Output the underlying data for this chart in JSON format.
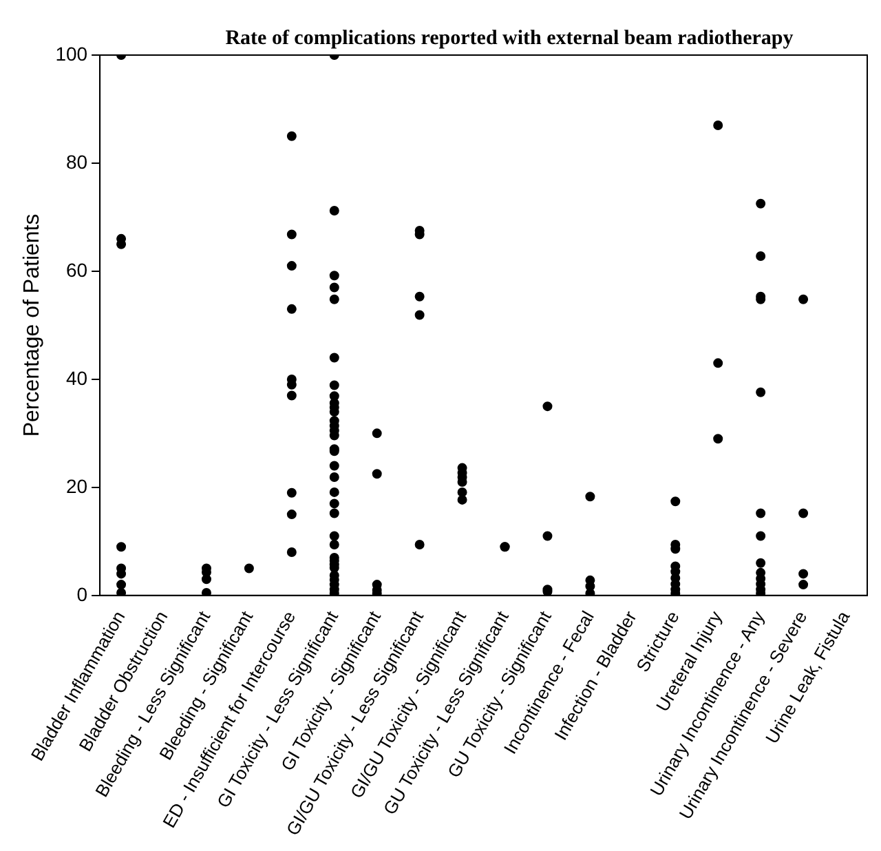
{
  "chart_data": {
    "type": "scatter",
    "title": "Rate of complications reported with external beam radiotherapy",
    "ylabel": "Percentage of Patients",
    "categories": [
      "Bladder Inflammation",
      "Bladder Obstruction",
      "Bleeding - Less Significant",
      "Bleeding - Significant",
      "ED - Insufficient for Intercourse",
      "GI Toxicity - Less Significant",
      "GI Toxicity - Significant",
      "GI/GU Toxicity - Less Significant",
      "GI/GU Toxicity - Significant",
      "GU Toxicity - Less Significant",
      "GU Toxicity - Significant",
      "Incontinence - Fecal",
      "Infection - Bladder",
      "Stricture",
      "Ureteral Injury",
      "Urinary Incontinence - Any",
      "Urinary Incontinence - Severe",
      "Urine Leak, Fistula"
    ],
    "series": [
      {
        "color": "#000000",
        "x": [
          "Bladder Inflammation",
          "Bladder Inflammation",
          "Bladder Inflammation",
          "Bladder Inflammation",
          "Bladder Inflammation",
          "Bladder Inflammation",
          "Bladder Inflammation",
          "Bladder Inflammation",
          "Bleeding - Less Significant",
          "Bleeding - Less Significant",
          "Bleeding - Less Significant",
          "Bleeding - Less Significant",
          "Bleeding - Significant",
          "ED - Insufficient for Intercourse",
          "ED - Insufficient for Intercourse",
          "ED - Insufficient for Intercourse",
          "ED - Insufficient for Intercourse",
          "ED - Insufficient for Intercourse",
          "ED - Insufficient for Intercourse",
          "ED - Insufficient for Intercourse",
          "ED - Insufficient for Intercourse",
          "ED - Insufficient for Intercourse",
          "ED - Insufficient for Intercourse",
          "GI Toxicity - Less Significant",
          "GI Toxicity - Less Significant",
          "GI Toxicity - Less Significant",
          "GI Toxicity - Less Significant",
          "GI Toxicity - Less Significant",
          "GI Toxicity - Less Significant",
          "GI Toxicity - Less Significant",
          "GI Toxicity - Less Significant",
          "GI Toxicity - Less Significant",
          "GI Toxicity - Less Significant",
          "GI Toxicity - Less Significant",
          "GI Toxicity - Less Significant",
          "GI Toxicity - Less Significant",
          "GI Toxicity - Less Significant",
          "GI Toxicity - Less Significant",
          "GI Toxicity - Less Significant",
          "GI Toxicity - Less Significant",
          "GI Toxicity - Less Significant",
          "GI Toxicity - Less Significant",
          "GI Toxicity - Less Significant",
          "GI Toxicity - Less Significant",
          "GI Toxicity - Less Significant",
          "GI Toxicity - Less Significant",
          "GI Toxicity - Less Significant",
          "GI Toxicity - Less Significant",
          "GI Toxicity - Less Significant",
          "GI Toxicity - Less Significant",
          "GI Toxicity - Less Significant",
          "GI Toxicity - Less Significant",
          "GI Toxicity - Less Significant",
          "GI Toxicity - Less Significant",
          "GI Toxicity - Less Significant",
          "GI Toxicity - Less Significant",
          "GI Toxicity - Significant",
          "GI Toxicity - Significant",
          "GI Toxicity - Significant",
          "GI Toxicity - Significant",
          "GI Toxicity - Significant",
          "GI/GU Toxicity - Less Significant",
          "GI/GU Toxicity - Less Significant",
          "GI/GU Toxicity - Less Significant",
          "GI/GU Toxicity - Less Significant",
          "GI/GU Toxicity - Less Significant",
          "GI/GU Toxicity - Significant",
          "GI/GU Toxicity - Significant",
          "GI/GU Toxicity - Significant",
          "GI/GU Toxicity - Significant",
          "GI/GU Toxicity - Significant",
          "GI/GU Toxicity - Significant",
          "GU Toxicity - Less Significant",
          "GU Toxicity - Less Significant",
          "GU Toxicity - Significant",
          "GU Toxicity - Significant",
          "GU Toxicity - Significant",
          "GU Toxicity - Significant",
          "Incontinence - Fecal",
          "Incontinence - Fecal",
          "Incontinence - Fecal",
          "Incontinence - Fecal",
          "Stricture",
          "Stricture",
          "Stricture",
          "Stricture",
          "Stricture",
          "Stricture",
          "Stricture",
          "Stricture",
          "Stricture",
          "Ureteral Injury",
          "Ureteral Injury",
          "Ureteral Injury",
          "Urinary Incontinence - Any",
          "Urinary Incontinence - Any",
          "Urinary Incontinence - Any",
          "Urinary Incontinence - Any",
          "Urinary Incontinence - Any",
          "Urinary Incontinence - Any",
          "Urinary Incontinence - Any",
          "Urinary Incontinence - Any",
          "Urinary Incontinence - Any",
          "Urinary Incontinence - Any",
          "Urinary Incontinence - Any",
          "Urinary Incontinence - Any",
          "Urinary Incontinence - Any",
          "Urinary Incontinence - Severe",
          "Urinary Incontinence - Severe",
          "Urinary Incontinence - Severe",
          "Urinary Incontinence - Severe"
        ],
        "values": [
          100,
          66,
          65,
          9,
          5,
          4,
          2,
          0.5,
          5,
          4.3,
          3,
          0.5,
          5,
          85,
          66.8,
          61,
          53,
          40,
          39,
          37,
          19,
          15,
          8,
          100,
          71.2,
          59.2,
          57,
          54.8,
          44,
          38.9,
          36.9,
          35.6,
          34.8,
          34,
          32.3,
          31.4,
          30.5,
          29.6,
          27.1,
          26.7,
          24,
          21.9,
          19.1,
          17,
          15.2,
          11,
          9.4,
          7,
          6.4,
          5.7,
          5.1,
          3.7,
          2.9,
          2,
          1.1,
          0.4,
          30,
          22.5,
          2,
          1,
          0.4,
          67.5,
          66.8,
          55.3,
          51.9,
          9.4,
          23.6,
          22.7,
          21.9,
          21,
          19.1,
          17.7,
          9,
          9,
          35,
          11,
          1.1,
          0.7,
          18.3,
          2.8,
          1.7,
          0.4,
          17.4,
          9.4,
          8.6,
          5.4,
          4.4,
          3.2,
          2.1,
          1.1,
          0.4,
          87,
          43,
          29,
          72.5,
          62.8,
          55.3,
          54.8,
          37.6,
          15.2,
          11,
          6,
          4.2,
          3.1,
          2.1,
          1.1,
          0.4,
          54.8,
          15.2,
          4,
          2
        ]
      }
    ],
    "ylim": [
      0,
      100
    ],
    "yticks": [
      0,
      20,
      40,
      60,
      80,
      100
    ],
    "marker": "circle",
    "grid": false,
    "legend": false
  }
}
